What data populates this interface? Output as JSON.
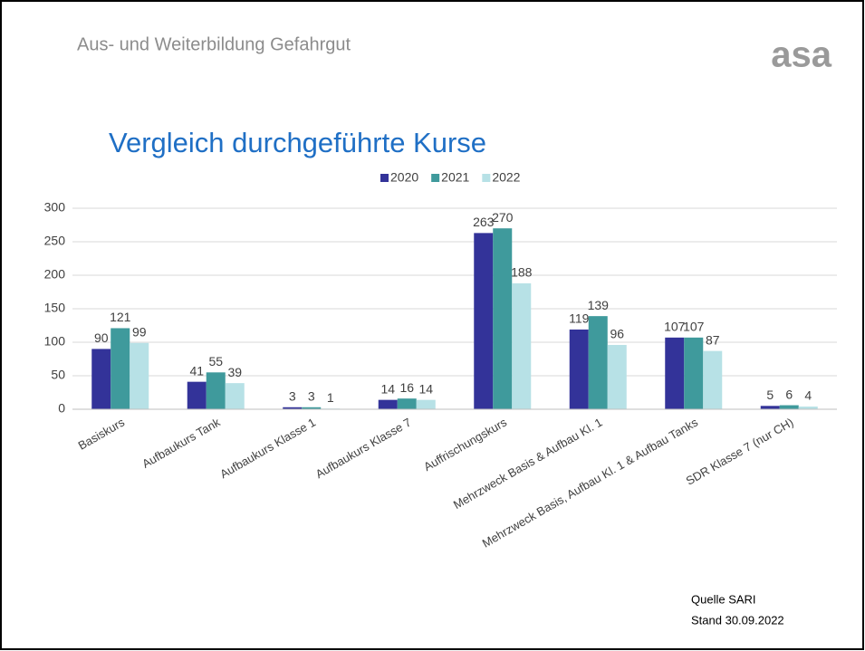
{
  "header": {
    "title": "Aus- und Weiterbildung Gefahrgut",
    "logo": "asa"
  },
  "chart_data": {
    "type": "bar",
    "title": "Vergleich durchgeführte Kurse",
    "categories": [
      "Basiskurs",
      "Aufbaukurs Tank",
      "Aufbaukurs Klasse 1",
      "Aufbaukurs Klasse 7",
      "Auffrischungskurs",
      "Mehrzweck Basis & Aufbau Kl. 1",
      "Mehrzweck Basis, Aufbau Kl. 1 & Aufbau Tanks",
      "SDR Klasse 7 (nur CH)"
    ],
    "series": [
      {
        "name": "2020",
        "color": "#333399",
        "values": [
          90,
          41,
          3,
          14,
          263,
          119,
          107,
          5
        ]
      },
      {
        "name": "2021",
        "color": "#3f9a9c",
        "values": [
          121,
          55,
          3,
          16,
          270,
          139,
          107,
          6
        ]
      },
      {
        "name": "2022",
        "color": "#b7e1e6",
        "values": [
          99,
          39,
          1,
          14,
          188,
          96,
          87,
          4
        ]
      }
    ],
    "ylim": [
      0,
      300
    ],
    "yticks": [
      0,
      50,
      100,
      150,
      200,
      250,
      300
    ],
    "grid": true,
    "legend": "top"
  },
  "footer": {
    "source": "Quelle SARI",
    "date": "Stand 30.09.2022"
  }
}
